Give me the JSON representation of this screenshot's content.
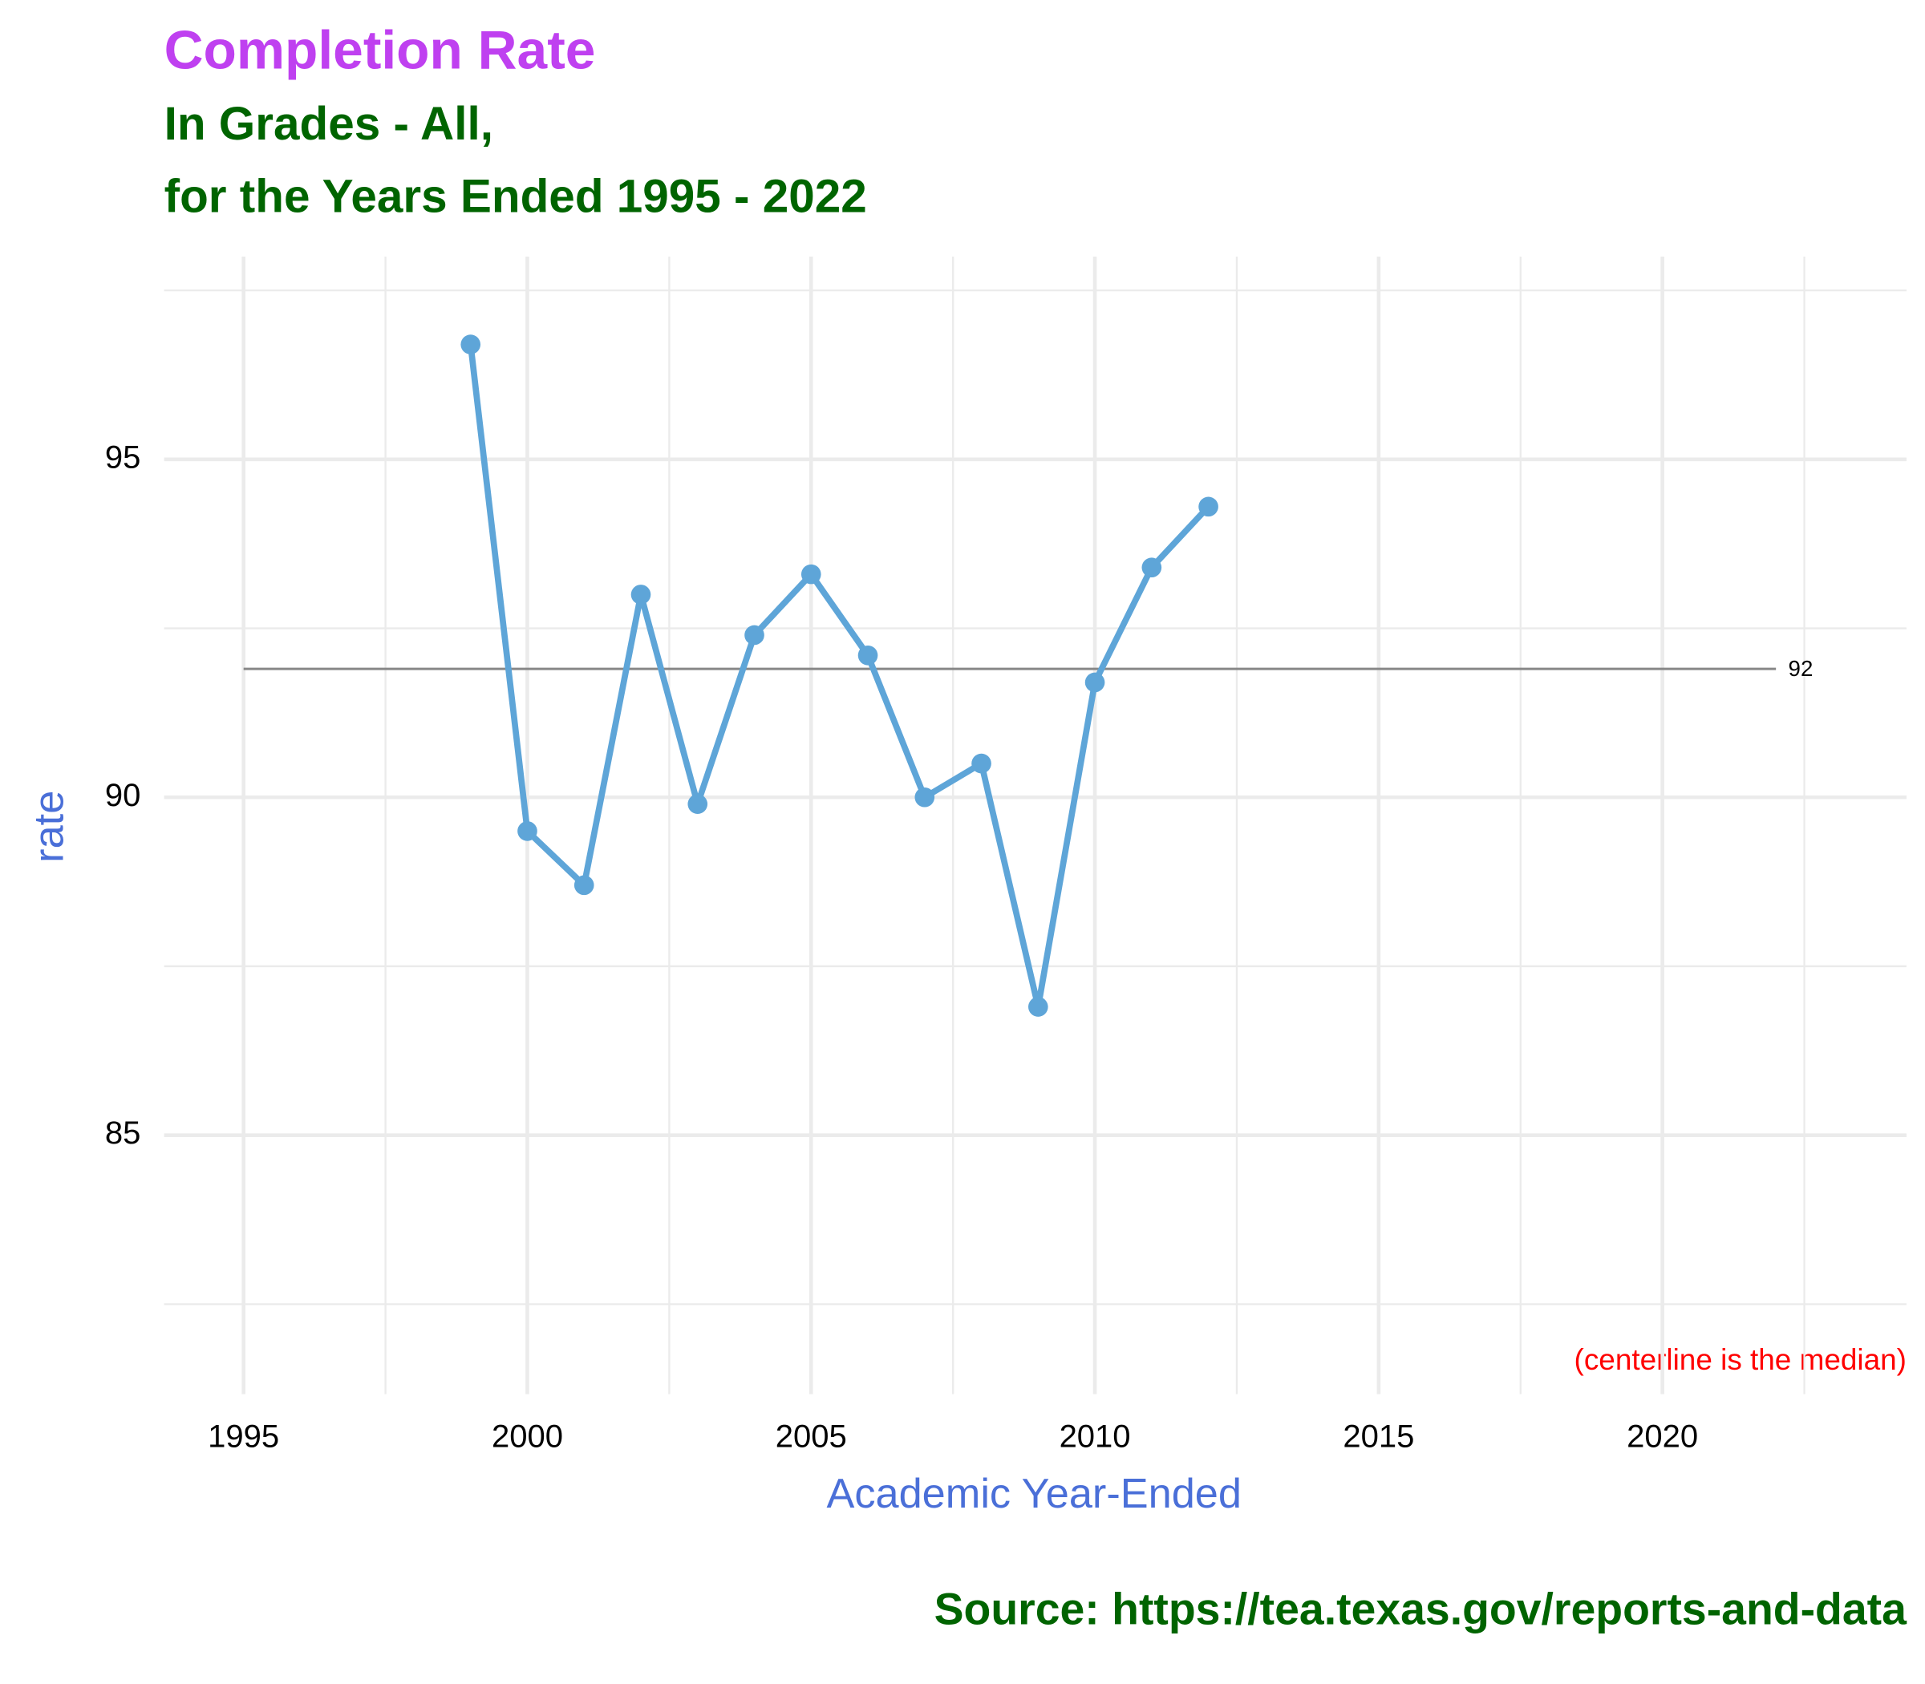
{
  "chart_data": {
    "type": "line",
    "title": "Completion Rate",
    "subtitle": [
      "In Grades - All,",
      "for the Years Ended 1995 - 2022"
    ],
    "x_label": "Academic Year-Ended",
    "y_label": "rate",
    "note": "(centerline is the median)",
    "caption": "Source:  https://tea.texas.gov/reports-and-data",
    "x": [
      1999,
      2000,
      2001,
      2002,
      2003,
      2004,
      2005,
      2006,
      2007,
      2008,
      2009,
      2010,
      2011,
      2012
    ],
    "series": [
      {
        "color": "#5ea5d8",
        "values": [
          96.7,
          89.5,
          88.7,
          93.0,
          89.9,
          92.4,
          93.3,
          92.1,
          90.0,
          90.5,
          86.9,
          91.7,
          93.4,
          94.3
        ]
      }
    ],
    "centerline": {
      "value": 91.9,
      "label": "92",
      "x": [
        1995,
        2022
      ],
      "color": "#888888"
    },
    "xlim": [
      1993.6,
      2024.3
    ],
    "ylim": [
      81.17,
      98.0
    ],
    "xticks": [
      1995,
      2000,
      2005,
      2010,
      2015,
      2020
    ],
    "yticks": [
      85,
      90,
      95
    ],
    "xminorticks": [
      1997.5,
      2002.5,
      2007.5,
      2012.5,
      2017.5,
      2022.5
    ],
    "yminorticks": [
      82.5,
      87.5,
      92.5,
      97.5
    ],
    "grid": true
  }
}
